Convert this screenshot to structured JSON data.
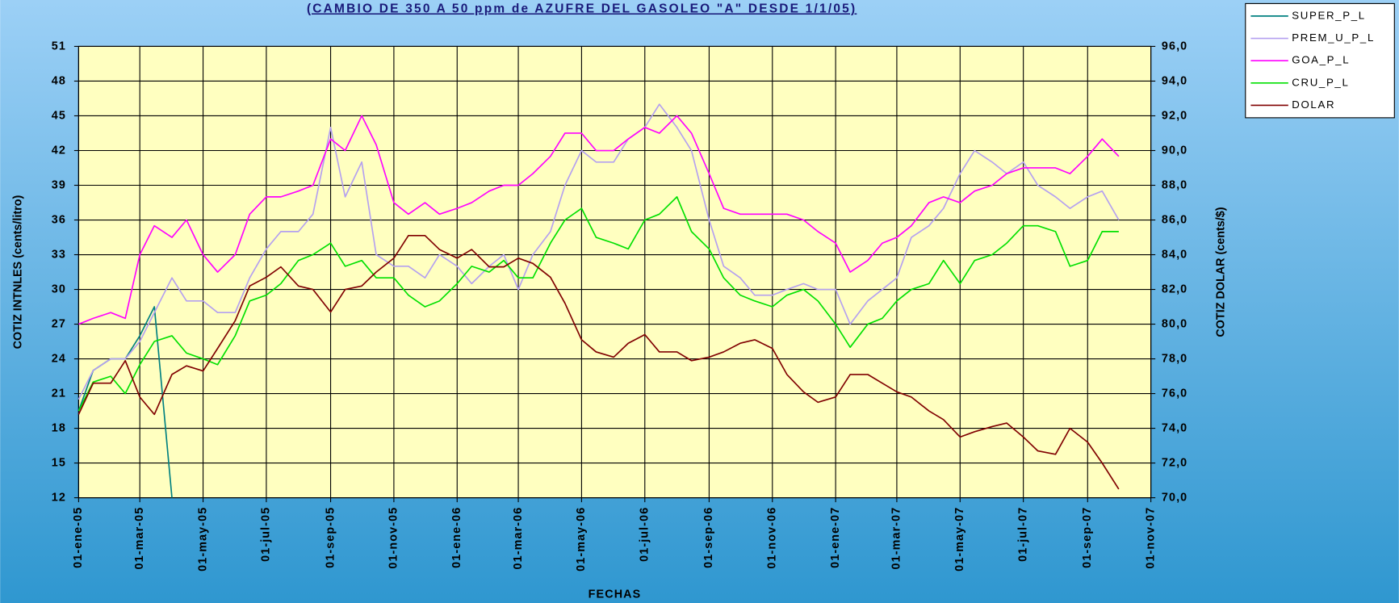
{
  "chart_data": {
    "type": "line",
    "title": "(CAMBIO DE 350 A 50 ppm de AZUFRE DEL GASOLEO \"A\" DESDE 1/1/05)",
    "x_label": "FECHAS",
    "y_label": "COTIZ INTNLES (cents/litro)",
    "y2_label": "COTIZ DOLAR (cents/$)",
    "x": [
      "2005-01-01",
      "2005-01-15",
      "2005-02-01",
      "2005-02-15",
      "2005-03-01",
      "2005-03-15",
      "2005-04-01",
      "2005-04-15",
      "2005-05-01",
      "2005-05-15",
      "2005-06-01",
      "2005-06-15",
      "2005-07-01",
      "2005-07-15",
      "2005-08-01",
      "2005-08-15",
      "2005-09-01",
      "2005-09-15",
      "2005-10-01",
      "2005-10-15",
      "2005-11-01",
      "2005-11-15",
      "2005-12-01",
      "2005-12-15",
      "2006-01-01",
      "2006-01-15",
      "2006-02-01",
      "2006-02-15",
      "2006-03-01",
      "2006-03-15",
      "2006-04-01",
      "2006-04-15",
      "2006-05-01",
      "2006-05-15",
      "2006-06-01",
      "2006-06-15",
      "2006-07-01",
      "2006-07-15",
      "2006-08-01",
      "2006-08-15",
      "2006-09-01",
      "2006-09-15",
      "2006-10-01",
      "2006-10-15",
      "2006-11-01",
      "2006-11-15",
      "2006-12-01",
      "2006-12-15",
      "2007-01-01",
      "2007-01-15",
      "2007-02-01",
      "2007-02-15",
      "2007-03-01",
      "2007-03-15",
      "2007-04-01",
      "2007-04-15",
      "2007-05-01",
      "2007-05-15",
      "2007-06-01",
      "2007-06-15",
      "2007-07-01",
      "2007-07-15",
      "2007-08-01",
      "2007-08-15",
      "2007-09-01",
      "2007-09-15",
      "2007-10-01"
    ],
    "xlim": [
      "2005-01-01",
      "2007-11-01"
    ],
    "xticks": [
      {
        "value": "2005-01-01",
        "label": "01-ene-05"
      },
      {
        "value": "2005-03-01",
        "label": "01-mar-05"
      },
      {
        "value": "2005-05-01",
        "label": "01-may-05"
      },
      {
        "value": "2005-07-01",
        "label": "01-jul-05"
      },
      {
        "value": "2005-09-01",
        "label": "01-sep-05"
      },
      {
        "value": "2005-11-01",
        "label": "01-nov-05"
      },
      {
        "value": "2006-01-01",
        "label": "01-ene-06"
      },
      {
        "value": "2006-03-01",
        "label": "01-mar-06"
      },
      {
        "value": "2006-05-01",
        "label": "01-may-06"
      },
      {
        "value": "2006-07-01",
        "label": "01-jul-06"
      },
      {
        "value": "2006-09-01",
        "label": "01-sep-06"
      },
      {
        "value": "2006-11-01",
        "label": "01-nov-06"
      },
      {
        "value": "2007-01-01",
        "label": "01-ene-07"
      },
      {
        "value": "2007-03-01",
        "label": "01-mar-07"
      },
      {
        "value": "2007-05-01",
        "label": "01-may-07"
      },
      {
        "value": "2007-07-01",
        "label": "01-jul-07"
      },
      {
        "value": "2007-09-01",
        "label": "01-sep-07"
      },
      {
        "value": "2007-11-01",
        "label": "01-nov-07"
      }
    ],
    "ylim": [
      12,
      51
    ],
    "yticks": [
      12,
      15,
      18,
      21,
      24,
      27,
      30,
      33,
      36,
      39,
      42,
      45,
      48,
      51
    ],
    "y2lim": [
      70,
      96
    ],
    "y2ticks": [
      {
        "value": 70,
        "label": "70,0"
      },
      {
        "value": 72,
        "label": "72,0"
      },
      {
        "value": 74,
        "label": "74,0"
      },
      {
        "value": 76,
        "label": "76,0"
      },
      {
        "value": 78,
        "label": "78,0"
      },
      {
        "value": 80,
        "label": "80,0"
      },
      {
        "value": 82,
        "label": "82,0"
      },
      {
        "value": 84,
        "label": "84,0"
      },
      {
        "value": 86,
        "label": "86,0"
      },
      {
        "value": 88,
        "label": "88,0"
      },
      {
        "value": 90,
        "label": "90,0"
      },
      {
        "value": 92,
        "label": "92,0"
      },
      {
        "value": 94,
        "label": "94,0"
      },
      {
        "value": 96,
        "label": "96,0"
      }
    ],
    "grid": true,
    "legend": "top-right",
    "plot_background": "#ffffc0",
    "series": [
      {
        "name": "SUPER_P_L",
        "color": "#008080",
        "values": [
          19.5,
          23,
          24,
          24,
          26,
          28.5,
          12,
          null,
          null,
          null,
          null,
          null,
          null,
          null,
          null,
          null,
          null,
          null,
          null,
          null,
          null,
          null,
          null,
          null,
          null,
          null,
          null,
          null,
          null,
          null,
          null,
          null,
          null,
          null,
          null,
          null,
          null,
          null,
          null,
          null,
          null,
          null,
          null,
          null,
          null,
          null,
          null,
          null,
          null,
          null,
          null,
          null,
          null,
          null,
          null,
          null,
          null,
          null,
          null,
          null,
          null,
          null,
          null,
          null,
          null,
          null,
          null
        ]
      },
      {
        "name": "PREM_U_P_L",
        "color": "#b4a0f0",
        "values": [
          20.5,
          23,
          24,
          24,
          25.5,
          28,
          31,
          29,
          29,
          28,
          28,
          31,
          33.5,
          35,
          35,
          36.5,
          44,
          38,
          41,
          33,
          32,
          32,
          31,
          33,
          32,
          30.5,
          32,
          33,
          30,
          33,
          35,
          39,
          42,
          41,
          41,
          43,
          44,
          46,
          44,
          42,
          36,
          32,
          31,
          29.5,
          29.5,
          30,
          30.5,
          30,
          30,
          27,
          29,
          30,
          31,
          34.5,
          35.5,
          37,
          40,
          42,
          41,
          40,
          41,
          39,
          38,
          37,
          38,
          38.5,
          36
        ]
      },
      {
        "name": "GOA_P_L",
        "color": "#ff00ff",
        "values": [
          27,
          27.5,
          28,
          27.5,
          33,
          35.5,
          34.5,
          36,
          33,
          31.5,
          33,
          36.5,
          38,
          38,
          38.5,
          39,
          43,
          42,
          45,
          42.5,
          37.5,
          36.5,
          37.5,
          36.5,
          37,
          37.5,
          38.5,
          39,
          39,
          40,
          41.5,
          43.5,
          43.5,
          42,
          42,
          43,
          44,
          43.5,
          45,
          43.5,
          40,
          37,
          36.5,
          36.5,
          36.5,
          36.5,
          36,
          35,
          34,
          31.5,
          32.5,
          34,
          34.5,
          35.5,
          37.5,
          38,
          37.5,
          38.5,
          39,
          40,
          40.5,
          40.5,
          40.5,
          40,
          41.5,
          43,
          41.5
        ]
      },
      {
        "name": "CRU_P_L",
        "color": "#00e000",
        "values": [
          19.5,
          22,
          22.5,
          21,
          23.5,
          25.5,
          26,
          24.5,
          24,
          23.5,
          26,
          29,
          29.5,
          30.5,
          32.5,
          33,
          34,
          32,
          32.5,
          31,
          31,
          29.5,
          28.5,
          29,
          30.5,
          32,
          31.5,
          32.5,
          31,
          31,
          34,
          36,
          37,
          34.5,
          34,
          33.5,
          36,
          36.5,
          38,
          35,
          33.5,
          31,
          29.5,
          29,
          28.5,
          29.5,
          30,
          29,
          27,
          25,
          27,
          27.5,
          29,
          30,
          30.5,
          32.5,
          30.5,
          32.5,
          33,
          34,
          35.5,
          35.5,
          35,
          32,
          32.5,
          35,
          35
        ]
      },
      {
        "name": "DOLAR",
        "color": "#800000",
        "axis": "y2",
        "values": [
          74.8,
          76.6,
          76.6,
          77.9,
          75.8,
          74.8,
          77.1,
          77.6,
          77.3,
          78.6,
          80.2,
          82.2,
          82.7,
          83.3,
          82.2,
          82,
          80.7,
          82,
          82.2,
          83,
          83.8,
          85.1,
          85.1,
          84.3,
          83.8,
          84.3,
          83.3,
          83.3,
          83.8,
          83.5,
          82.7,
          81.2,
          79.1,
          78.4,
          78.1,
          78.9,
          79.4,
          78.4,
          78.4,
          77.9,
          78.1,
          78.4,
          78.9,
          79.1,
          78.6,
          77.1,
          76.1,
          75.5,
          75.8,
          77.1,
          77.1,
          76.6,
          76.1,
          75.8,
          75,
          74.5,
          73.5,
          73.8,
          74.1,
          74.3,
          73.5,
          72.7,
          72.5,
          74,
          73.2,
          72,
          70.5
        ]
      }
    ]
  }
}
